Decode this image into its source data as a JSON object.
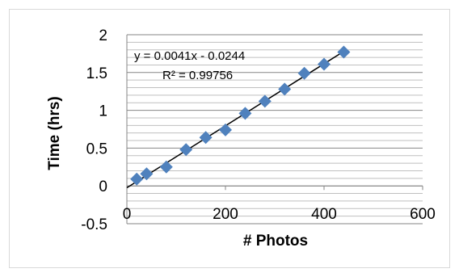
{
  "chart_data": {
    "type": "scatter",
    "xlabel": "# Photos",
    "ylabel": "Time (hrs)",
    "xlim": [
      0,
      600
    ],
    "ylim": [
      -0.5,
      2
    ],
    "x_ticks": [
      "0",
      "200",
      "400",
      "600"
    ],
    "y_ticks": [
      "-0.5",
      "0",
      "0.5",
      "1",
      "1.5",
      "2"
    ],
    "grid": "horizontal major and minor",
    "marker_color": "#4f81bd",
    "trendline_color": "#000000",
    "trendline": {
      "slope": 0.0041,
      "intercept": -0.0244,
      "equation": "y = 0.0041x - 0.0244",
      "r_squared": "R² = 0.99756"
    },
    "points": [
      {
        "x": 20,
        "y": 0.09
      },
      {
        "x": 40,
        "y": 0.16
      },
      {
        "x": 80,
        "y": 0.25
      },
      {
        "x": 120,
        "y": 0.48
      },
      {
        "x": 160,
        "y": 0.64
      },
      {
        "x": 200,
        "y": 0.74
      },
      {
        "x": 240,
        "y": 0.96
      },
      {
        "x": 280,
        "y": 1.12
      },
      {
        "x": 320,
        "y": 1.28
      },
      {
        "x": 360,
        "y": 1.49
      },
      {
        "x": 400,
        "y": 1.61
      },
      {
        "x": 440,
        "y": 1.77
      }
    ]
  }
}
